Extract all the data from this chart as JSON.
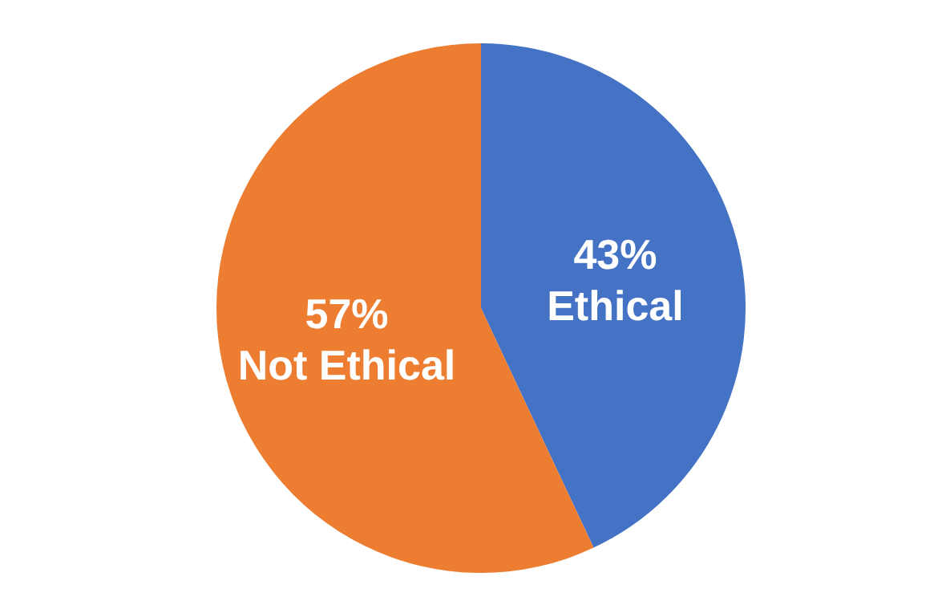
{
  "chart_data": {
    "type": "pie",
    "categories": [
      "Ethical",
      "Not Ethical"
    ],
    "values": [
      43,
      57
    ],
    "colors": [
      "#4472c4",
      "#ed7d31"
    ],
    "value_labels": [
      "43%",
      "57%"
    ]
  }
}
